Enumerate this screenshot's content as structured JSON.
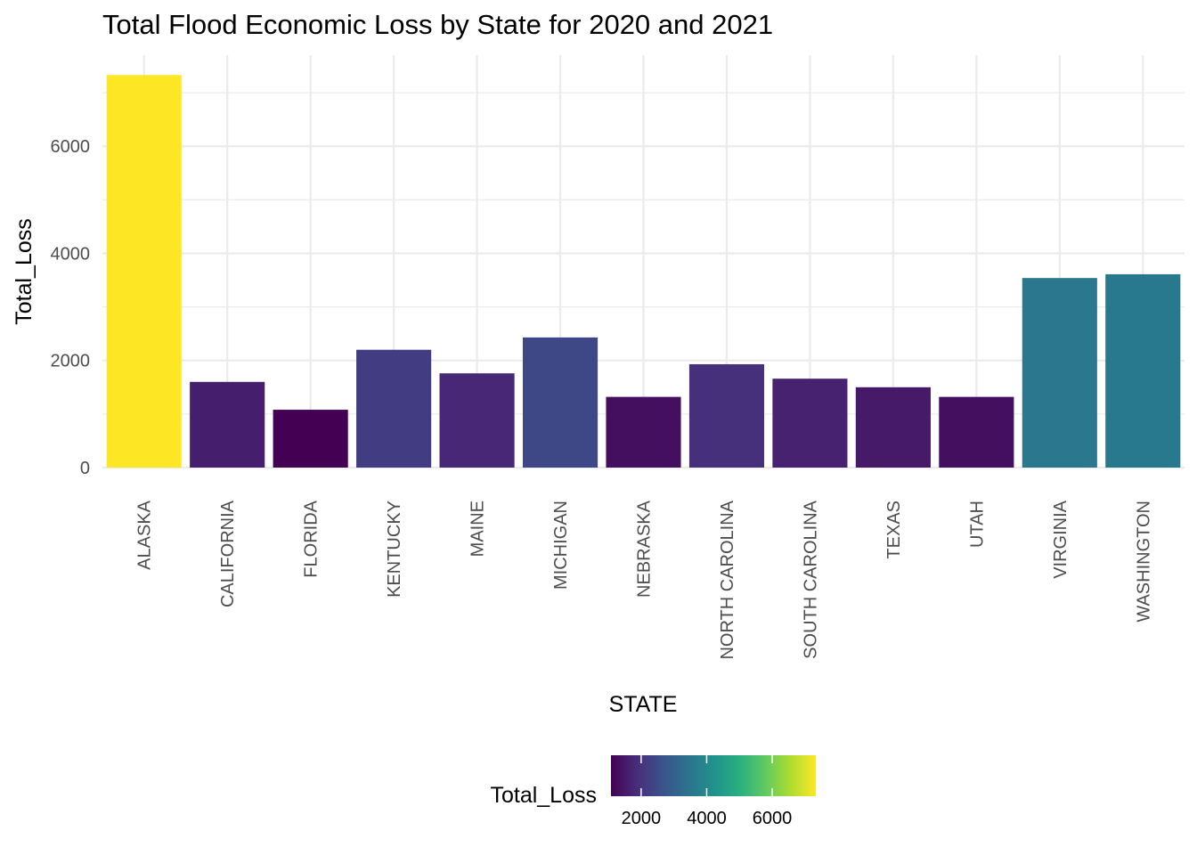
{
  "chart_data": {
    "type": "bar",
    "title": "Total Flood Economic Loss by State for 2020 and 2021",
    "xlabel": "STATE",
    "ylabel": "Total_Loss",
    "categories": [
      "ALASKA",
      "CALIFORNIA",
      "FLORIDA",
      "KENTUCKY",
      "MAINE",
      "MICHIGAN",
      "NEBRASKA",
      "NORTH CAROLINA",
      "SOUTH CAROLINA",
      "TEXAS",
      "UTAH",
      "VIRGINIA",
      "WASHINGTON"
    ],
    "values": [
      7330,
      1600,
      1080,
      2200,
      1760,
      2430,
      1320,
      1930,
      1660,
      1500,
      1320,
      3540,
      3610
    ],
    "ylim": [
      0,
      7700
    ],
    "yticks": [
      0,
      2000,
      4000,
      6000
    ],
    "yticks_labels": [
      "0",
      "2000",
      "4000",
      "6000"
    ],
    "grid": true,
    "color_scale": "viridis",
    "legend": {
      "title": "Total_Loss",
      "placement": "bottom",
      "range": [
        1080,
        7330
      ],
      "ticks": [
        2000,
        4000,
        6000
      ],
      "tick_labels": [
        "2000",
        "4000",
        "6000"
      ]
    }
  }
}
